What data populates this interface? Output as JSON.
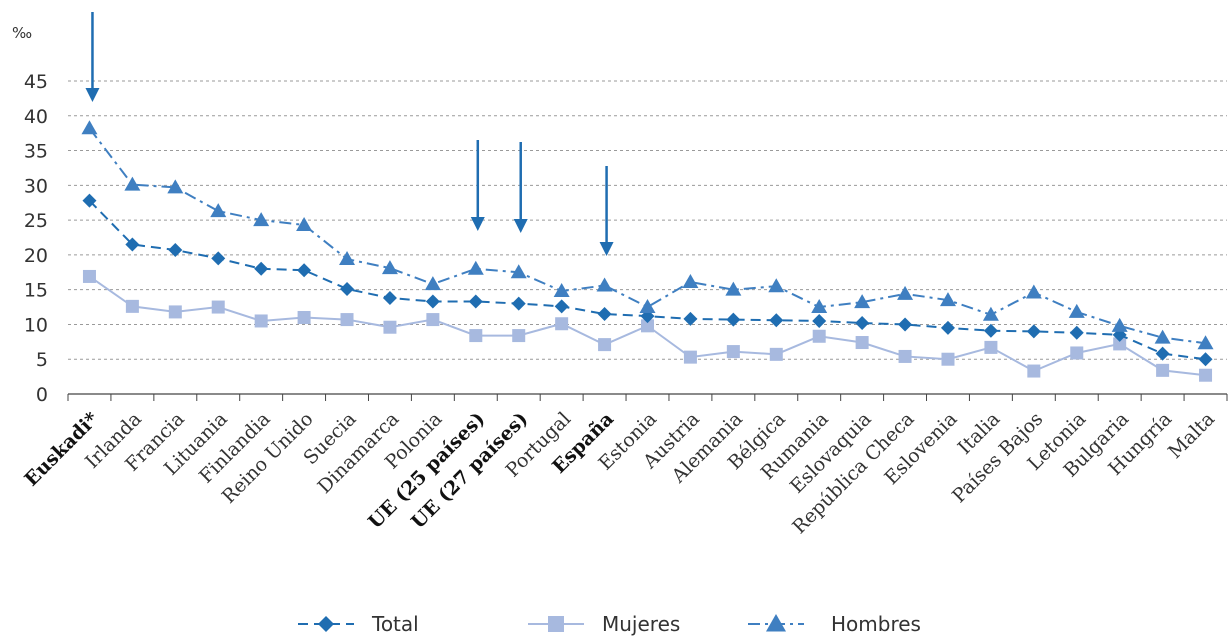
{
  "chart_data": {
    "type": "line",
    "ylabel": "‰",
    "ylim": [
      0,
      45
    ],
    "yticks": [
      "0",
      "5",
      "10",
      "15",
      "20",
      "25",
      "30",
      "35",
      "40",
      "45"
    ],
    "grid": "horizontal-dashed",
    "legend_position": "bottom",
    "categories": [
      "Euskadi*",
      "Irlanda",
      "Francia",
      "Lituania",
      "Finlandia",
      "Reino Unido",
      "Suecia",
      "Dinamarca",
      "Polonia",
      "UE (25 países)",
      "UE (27 países)",
      "Portugal",
      "España",
      "Estonia",
      "Austria",
      "Alemania",
      "Bélgica",
      "Rumania",
      "Eslovaquia",
      "República Checa",
      "Eslovenia",
      "Italia",
      "Países Bajos",
      "Letonia",
      "Bulgaria",
      "Hungría",
      "Malta"
    ],
    "highlighted_categories": [
      "Euskadi*",
      "UE (25 países)",
      "UE (27 países)",
      "España"
    ],
    "series": [
      {
        "name": "Total",
        "marker": "diamond",
        "line": "dashed",
        "color": "#1f6db1",
        "values": [
          27.8,
          21.5,
          20.7,
          19.5,
          18.0,
          17.8,
          15.1,
          13.8,
          13.3,
          13.3,
          13.0,
          12.6,
          11.5,
          11.2,
          10.8,
          10.7,
          10.6,
          10.5,
          10.2,
          10.0,
          9.5,
          9.1,
          9.0,
          8.8,
          8.5,
          5.8,
          5.0
        ]
      },
      {
        "name": "Mujeres",
        "marker": "square",
        "line": "solid",
        "color": "#a7b9df",
        "values": [
          16.9,
          12.6,
          11.8,
          12.5,
          10.5,
          11.0,
          10.7,
          9.6,
          10.7,
          8.4,
          8.4,
          10.1,
          7.1,
          9.8,
          5.3,
          6.1,
          5.7,
          8.3,
          7.4,
          5.4,
          5.0,
          6.7,
          3.3,
          5.9,
          7.2,
          3.4,
          2.7
        ]
      },
      {
        "name": "Hombres",
        "marker": "triangle",
        "line": "dashdot",
        "color": "#3f7fc1",
        "values": [
          38.2,
          30.1,
          29.7,
          26.3,
          25.0,
          24.3,
          19.4,
          18.1,
          15.8,
          18.0,
          17.5,
          14.8,
          15.6,
          12.5,
          16.1,
          15.0,
          15.5,
          12.5,
          13.2,
          14.4,
          13.5,
          11.4,
          14.6,
          11.8,
          9.8,
          8.1,
          7.3
        ]
      }
    ],
    "annotations": [
      {
        "type": "arrow-down",
        "category": "Euskadi*",
        "color": "#1f6db1"
      },
      {
        "type": "arrow-down",
        "category": "UE (25 países)",
        "color": "#1f6db1"
      },
      {
        "type": "arrow-down",
        "category": "UE (27 países)",
        "color": "#1f6db1"
      },
      {
        "type": "arrow-down",
        "category": "España",
        "color": "#1f6db1"
      }
    ]
  }
}
